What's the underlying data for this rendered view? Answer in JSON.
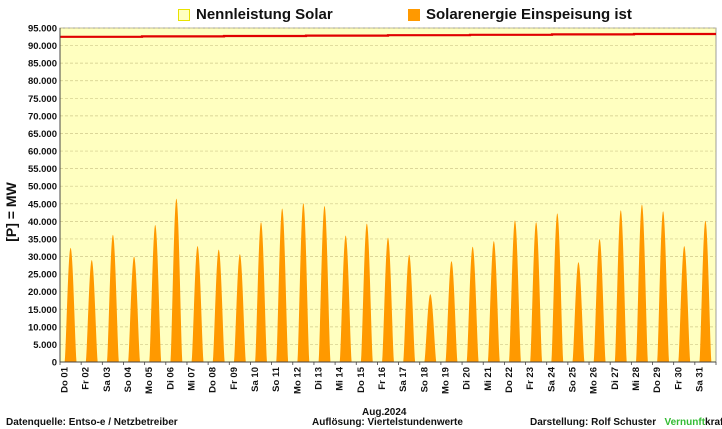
{
  "legend": {
    "capacity_label": "Nennleistung Solar",
    "feedin_label": "Solarenergie Einspeisung ist"
  },
  "colors": {
    "capacity_line": "#e00000",
    "capacity_swatch_border": "#e8e200",
    "capacity_fill": "#ffffc0",
    "feedin": "#ff9900",
    "grid": "#cfc98a"
  },
  "footer": {
    "source": "Datenquelle:  Entso-e  / Netzbetreiber",
    "resolution": "Auflösung: Viertelstundenwerte",
    "author": "Darstellung:  Rolf Schuster",
    "brand_part1": "Vernunft",
    "brand_part2": "kraft"
  },
  "chart_data": {
    "type": "area",
    "ylabel": "[P]  =  MW",
    "xlabel": "Aug.2024",
    "ylim": [
      0,
      95000
    ],
    "ytick_step": 5000,
    "ytick_labels": [
      "0",
      "5.000",
      "10.000",
      "15.000",
      "20.000",
      "25.000",
      "30.000",
      "35.000",
      "40.000",
      "45.000",
      "50.000",
      "55.000",
      "60.000",
      "65.000",
      "70.000",
      "75.000",
      "80.000",
      "85.000",
      "90.000",
      "95.000"
    ],
    "grid": true,
    "categories": [
      "Do 01",
      "Fr 02",
      "Sa 03",
      "So 04",
      "Mo 05",
      "Di 06",
      "Mi 07",
      "Do 08",
      "Fr 09",
      "Sa 10",
      "So 11",
      "Mo 12",
      "Di 13",
      "Mi 14",
      "Do 15",
      "Fr 16",
      "Sa 17",
      "So 18",
      "Mo 19",
      "Di 20",
      "Mi 21",
      "Do 22",
      "Fr 23",
      "Sa 24",
      "So 25",
      "Mo 26",
      "Di 27",
      "Mi 28",
      "Do 29",
      "Fr 30",
      "Sa 31"
    ],
    "series": [
      {
        "name": "Solarenergie Einspeisung ist",
        "daily_peak_values": [
          32500,
          29000,
          36200,
          30000,
          39000,
          46500,
          33000,
          32000,
          30700,
          39800,
          43700,
          45200,
          44400,
          36000,
          39400,
          35400,
          30500,
          19300,
          28700,
          32800,
          34400,
          40300,
          39800,
          42300,
          28400,
          35000,
          43200,
          44800,
          42900,
          33000,
          40200
        ]
      },
      {
        "name": "Nennleistung Solar",
        "start": 92500,
        "end": 93300
      }
    ]
  }
}
